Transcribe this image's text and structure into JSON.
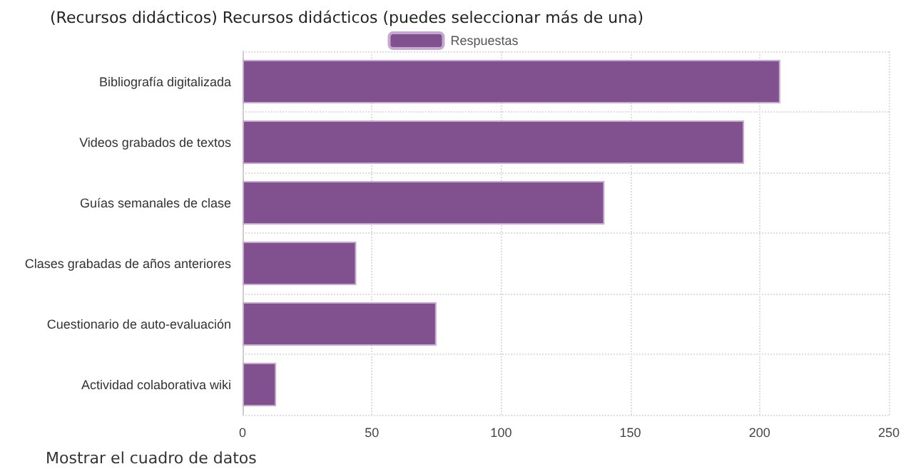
{
  "chart_data": {
    "type": "bar",
    "orientation": "horizontal",
    "title": "(Recursos didácticos) Recursos didácticos (puedes seleccionar más de una)",
    "categories": [
      "Bibliografía digitalizada",
      "Videos grabados de textos",
      "Guías semanales de clase",
      "Clases grabadas de años anteriores",
      "Cuestionario de auto-evaluación",
      "Actividad colaborativa wiki"
    ],
    "series": [
      {
        "name": "Respuestas",
        "color": "#80508f",
        "values": [
          208,
          194,
          140,
          44,
          75,
          13
        ]
      }
    ],
    "xlim": [
      0,
      250
    ],
    "xticks": [
      0,
      50,
      100,
      150,
      200,
      250
    ],
    "grid": true,
    "legend": "top",
    "annotations": [
      "Mostrar el cuadro de datos"
    ]
  }
}
